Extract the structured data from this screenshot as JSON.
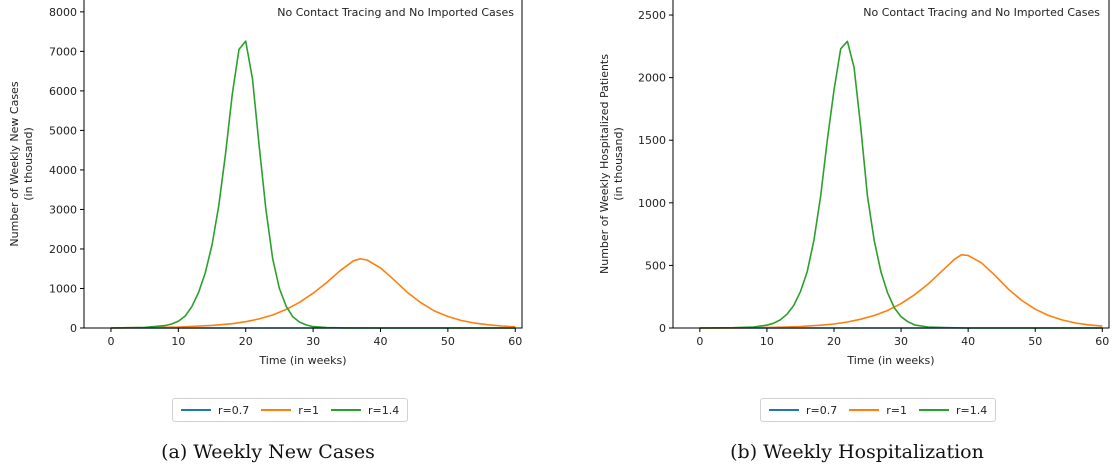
{
  "chart_data": [
    {
      "type": "line",
      "annotation": "No Contact Tracing and No Imported Cases",
      "xlabel": "Time (in weeks)",
      "ylabel_lines": [
        "Number of Weekly New Cases",
        "(in thousand)"
      ],
      "xlim": [
        -4,
        61
      ],
      "ylim": [
        0,
        8300
      ],
      "xticks": [
        0,
        10,
        20,
        30,
        40,
        50,
        60
      ],
      "yticks": [
        0,
        1000,
        2000,
        3000,
        4000,
        5000,
        6000,
        7000,
        8000
      ],
      "caption": "(a) Weekly New Cases",
      "series": [
        {
          "name": "r=0.7",
          "color": "#1f77b4",
          "x": [
            0,
            60
          ],
          "y": [
            0,
            0
          ]
        },
        {
          "name": "r=1",
          "color": "#ff7f0e",
          "x": [
            0,
            5,
            10,
            15,
            18,
            20,
            22,
            24,
            26,
            28,
            30,
            32,
            34,
            36,
            37,
            38,
            40,
            42,
            44,
            46,
            48,
            50,
            52,
            54,
            56,
            58,
            60
          ],
          "y": [
            2,
            8,
            25,
            65,
            110,
            160,
            230,
            330,
            470,
            650,
            880,
            1150,
            1450,
            1700,
            1750,
            1720,
            1520,
            1220,
            900,
            640,
            430,
            290,
            190,
            125,
            80,
            50,
            30
          ]
        },
        {
          "name": "r=1.4",
          "color": "#2ca02c",
          "x": [
            0,
            5,
            8,
            9,
            10,
            11,
            12,
            13,
            14,
            15,
            16,
            17,
            18,
            19,
            20,
            21,
            22,
            23,
            24,
            25,
            26,
            27,
            28,
            29,
            30,
            32,
            35,
            40,
            50,
            60
          ],
          "y": [
            0,
            15,
            60,
            100,
            170,
            300,
            540,
            900,
            1400,
            2100,
            3100,
            4400,
            5900,
            7050,
            7260,
            6300,
            4600,
            3000,
            1750,
            1000,
            550,
            280,
            150,
            75,
            35,
            10,
            2,
            0,
            0,
            0
          ]
        }
      ]
    },
    {
      "type": "line",
      "annotation": "No Contact Tracing and No Imported Cases",
      "xlabel": "Time (in weeks)",
      "ylabel_lines": [
        "Number of Weekly Hospitalized Patients",
        "(in thousand)"
      ],
      "xlim": [
        -4,
        61
      ],
      "ylim": [
        0,
        2620
      ],
      "xticks": [
        0,
        10,
        20,
        30,
        40,
        50,
        60
      ],
      "yticks": [
        0,
        500,
        1000,
        1500,
        2000,
        2500
      ],
      "caption": "(b) Weekly Hospitalization",
      "series": [
        {
          "name": "r=0.7",
          "color": "#1f77b4",
          "x": [
            0,
            60
          ],
          "y": [
            0,
            0
          ]
        },
        {
          "name": "r=1",
          "color": "#ff7f0e",
          "x": [
            0,
            5,
            10,
            15,
            18,
            20,
            22,
            24,
            26,
            28,
            30,
            32,
            34,
            36,
            38,
            39,
            40,
            42,
            44,
            46,
            48,
            50,
            52,
            54,
            56,
            58,
            60
          ],
          "y": [
            0,
            1,
            4,
            12,
            22,
            32,
            48,
            70,
            100,
            140,
            195,
            265,
            350,
            450,
            550,
            585,
            580,
            520,
            420,
            310,
            220,
            150,
            100,
            65,
            40,
            25,
            15
          ]
        },
        {
          "name": "r=1.4",
          "color": "#2ca02c",
          "x": [
            0,
            5,
            8,
            10,
            11,
            12,
            13,
            14,
            15,
            16,
            17,
            18,
            19,
            20,
            21,
            22,
            23,
            24,
            25,
            26,
            27,
            28,
            29,
            30,
            31,
            32,
            34,
            37,
            40,
            50,
            60
          ],
          "y": [
            0,
            2,
            8,
            22,
            38,
            65,
            110,
            180,
            290,
            450,
            700,
            1050,
            1500,
            1900,
            2230,
            2290,
            2080,
            1600,
            1050,
            700,
            450,
            280,
            160,
            90,
            50,
            25,
            8,
            2,
            0,
            0,
            0
          ]
        }
      ]
    }
  ]
}
